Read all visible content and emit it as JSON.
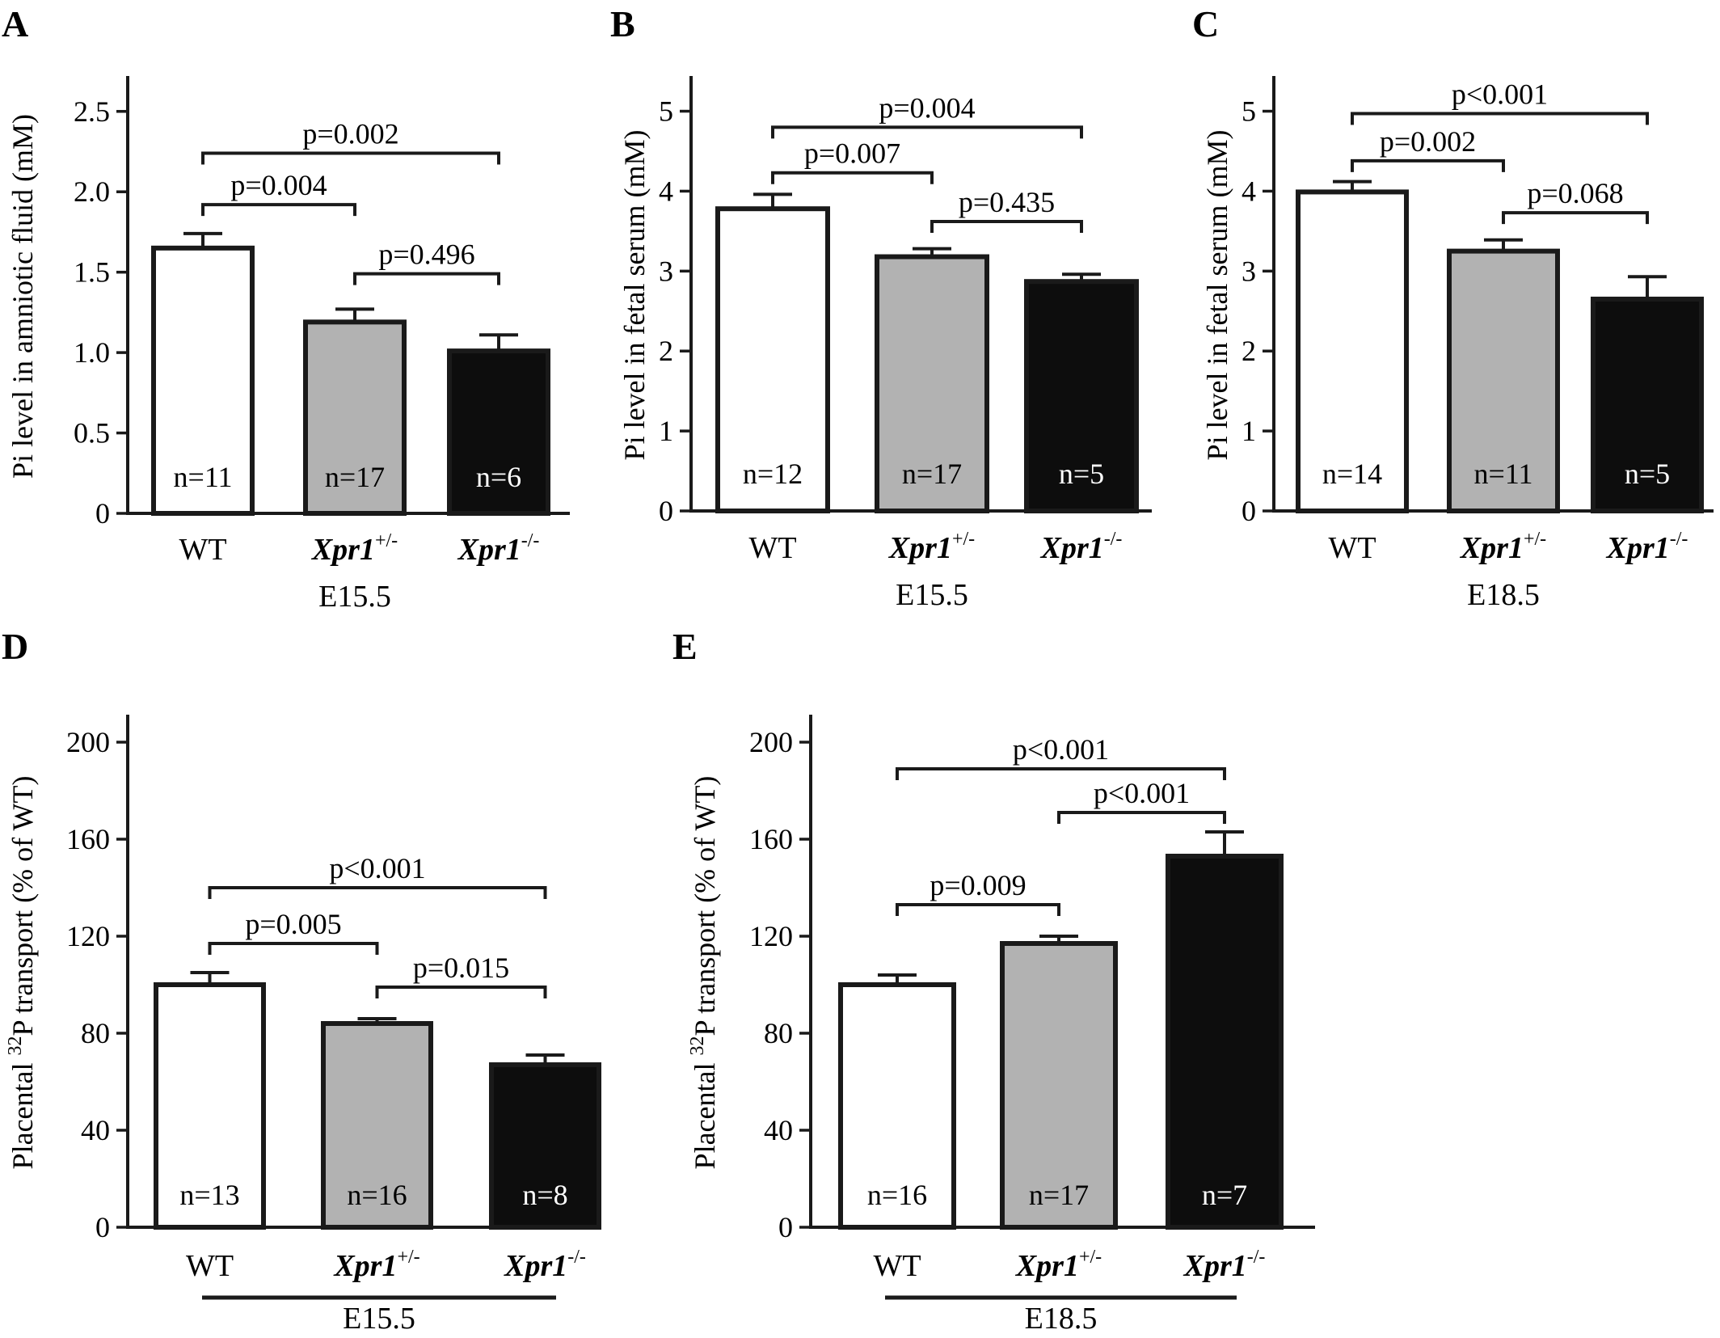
{
  "figure": {
    "colors": {
      "WT": "#ffffff",
      "het": "#b2b2b2",
      "ko": "#0d0d0d",
      "axis": "#1a1a1a"
    }
  },
  "chart_data": [
    {
      "panel": "A",
      "type": "bar",
      "ylabel": "Pi level in amniotic fluid (mM)",
      "ylim": [
        0,
        2.7
      ],
      "yticks": [
        0,
        0.5,
        1.0,
        1.5,
        2.0,
        2.5
      ],
      "ytick_labels": [
        "0",
        "0.5",
        "1.0",
        "1.5",
        "2.0",
        "2.5"
      ],
      "categories": [
        {
          "base": "WT",
          "sup": ""
        },
        {
          "base": "Xpr1",
          "sup": "+/-"
        },
        {
          "base": "Xpr1",
          "sup": "-/-"
        }
      ],
      "stage_label": "E15.5",
      "values": [
        1.65,
        1.19,
        1.01
      ],
      "errors": [
        0.09,
        0.08,
        0.1
      ],
      "n_labels": [
        "n=11",
        "n=17",
        "n=6"
      ],
      "comparisons": [
        {
          "from": 0,
          "to": 1,
          "y": 1.92,
          "label": "p=0.004"
        },
        {
          "from": 1,
          "to": 2,
          "y": 1.49,
          "label": "p=0.496"
        },
        {
          "from": 0,
          "to": 2,
          "y": 2.24,
          "label": "p=0.002"
        }
      ]
    },
    {
      "panel": "B",
      "type": "bar",
      "ylabel": "Pi level in fetal serum (mM)",
      "ylim": [
        0,
        5.4
      ],
      "yticks": [
        0,
        1,
        2,
        3,
        4,
        5
      ],
      "ytick_labels": [
        "0",
        "1",
        "2",
        "3",
        "4",
        "5"
      ],
      "categories": [
        {
          "base": "WT",
          "sup": ""
        },
        {
          "base": "Xpr1",
          "sup": "+/-"
        },
        {
          "base": "Xpr1",
          "sup": "-/-"
        }
      ],
      "stage_label": "E15.5",
      "values": [
        3.78,
        3.18,
        2.87
      ],
      "errors": [
        0.18,
        0.1,
        0.09
      ],
      "n_labels": [
        "n=12",
        "n=17",
        "n=5"
      ],
      "comparisons": [
        {
          "from": 0,
          "to": 1,
          "y": 4.23,
          "label": "p=0.007"
        },
        {
          "from": 1,
          "to": 2,
          "y": 3.62,
          "label": "p=0.435"
        },
        {
          "from": 0,
          "to": 2,
          "y": 4.8,
          "label": "p=0.004"
        }
      ]
    },
    {
      "panel": "C",
      "type": "bar",
      "ylabel": "Pi level in fetal serum (mM)",
      "ylim": [
        0,
        5.4
      ],
      "yticks": [
        0,
        1,
        2,
        3,
        4,
        5
      ],
      "ytick_labels": [
        "0",
        "1",
        "2",
        "3",
        "4",
        "5"
      ],
      "categories": [
        {
          "base": "WT",
          "sup": ""
        },
        {
          "base": "Xpr1",
          "sup": "+/-"
        },
        {
          "base": "Xpr1",
          "sup": "-/-"
        }
      ],
      "stage_label": "E18.5",
      "values": [
        3.99,
        3.25,
        2.65
      ],
      "errors": [
        0.13,
        0.14,
        0.28
      ],
      "n_labels": [
        "n=14",
        "n=11",
        "n=5"
      ],
      "comparisons": [
        {
          "from": 0,
          "to": 1,
          "y": 4.38,
          "label": "p=0.002"
        },
        {
          "from": 1,
          "to": 2,
          "y": 3.73,
          "label": "p=0.068"
        },
        {
          "from": 0,
          "to": 2,
          "y": 4.97,
          "label": "p<0.001"
        }
      ]
    },
    {
      "panel": "D",
      "type": "bar",
      "ylabel_pre": "Placental ",
      "ylabel_sup": "32",
      "ylabel_post": "P transport (% of WT)",
      "ylim": [
        0,
        210
      ],
      "yticks": [
        0,
        40,
        80,
        120,
        160,
        200
      ],
      "ytick_labels": [
        "0",
        "40",
        "80",
        "120",
        "160",
        "200"
      ],
      "categories": [
        {
          "base": "WT",
          "sup": ""
        },
        {
          "base": "Xpr1",
          "sup": "+/-"
        },
        {
          "base": "Xpr1",
          "sup": "-/-"
        }
      ],
      "stage_label": "E15.5",
      "values": [
        100,
        84,
        67
      ],
      "errors": [
        5,
        2,
        4
      ],
      "n_labels": [
        "n=13",
        "n=16",
        "n=8"
      ],
      "comparisons": [
        {
          "from": 0,
          "to": 1,
          "y": 117,
          "label": "p=0.005"
        },
        {
          "from": 1,
          "to": 2,
          "y": 99,
          "label": "p=0.015"
        },
        {
          "from": 0,
          "to": 2,
          "y": 140,
          "label": "p<0.001"
        }
      ]
    },
    {
      "panel": "E",
      "type": "bar",
      "ylabel_pre": "Placental ",
      "ylabel_sup": "32",
      "ylabel_post": "P transport (% of WT)",
      "ylim": [
        0,
        210
      ],
      "yticks": [
        0,
        40,
        80,
        120,
        160,
        200
      ],
      "ytick_labels": [
        "0",
        "40",
        "80",
        "120",
        "160",
        "200"
      ],
      "categories": [
        {
          "base": "WT",
          "sup": ""
        },
        {
          "base": "Xpr1",
          "sup": "+/-"
        },
        {
          "base": "Xpr1",
          "sup": "-/-"
        }
      ],
      "stage_label": "E18.5",
      "values": [
        100,
        117,
        153
      ],
      "errors": [
        4,
        3,
        10
      ],
      "n_labels": [
        "n=16",
        "n=17",
        "n=7"
      ],
      "comparisons": [
        {
          "from": 0,
          "to": 1,
          "y": 133,
          "label": "p=0.009"
        },
        {
          "from": 1,
          "to": 2,
          "y": 171,
          "label": "p<0.001"
        },
        {
          "from": 0,
          "to": 2,
          "y": 189,
          "label": "p<0.001"
        }
      ]
    }
  ]
}
